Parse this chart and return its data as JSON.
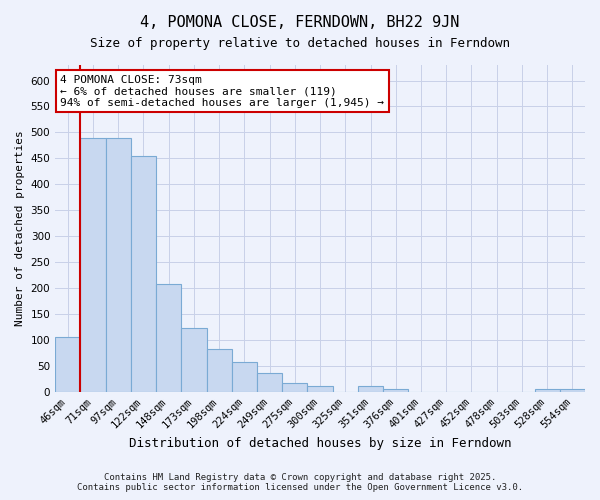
{
  "title": "4, POMONA CLOSE, FERNDOWN, BH22 9JN",
  "subtitle": "Size of property relative to detached houses in Ferndown",
  "xlabel": "Distribution of detached houses by size in Ferndown",
  "ylabel": "Number of detached properties",
  "footer_line1": "Contains HM Land Registry data © Crown copyright and database right 2025.",
  "footer_line2": "Contains public sector information licensed under the Open Government Licence v3.0.",
  "bin_labels": [
    "46sqm",
    "71sqm",
    "97sqm",
    "122sqm",
    "148sqm",
    "173sqm",
    "198sqm",
    "224sqm",
    "249sqm",
    "275sqm",
    "300sqm",
    "325sqm",
    "351sqm",
    "376sqm",
    "401sqm",
    "427sqm",
    "452sqm",
    "478sqm",
    "503sqm",
    "528sqm",
    "554sqm"
  ],
  "bar_heights": [
    105,
    490,
    490,
    455,
    207,
    122,
    82,
    58,
    35,
    17,
    10,
    0,
    10,
    5,
    0,
    0,
    0,
    0,
    0,
    5,
    5
  ],
  "bar_color": "#c8d8f0",
  "bar_edge_color": "#7aaad4",
  "ylim": [
    0,
    630
  ],
  "yticks": [
    0,
    50,
    100,
    150,
    200,
    250,
    300,
    350,
    400,
    450,
    500,
    550,
    600
  ],
  "property_line_color": "#cc0000",
  "annotation_line1": "4 POMONA CLOSE: 73sqm",
  "annotation_line2": "← 6% of detached houses are smaller (119)",
  "annotation_line3": "94% of semi-detached houses are larger (1,945) →",
  "annotation_box_color": "#ffffff",
  "annotation_box_edge": "#cc0000",
  "background_color": "#eef2fc",
  "grid_color": "#c8d0e8",
  "title_fontsize": 11,
  "subtitle_fontsize": 9,
  "xlabel_fontsize": 9,
  "ylabel_fontsize": 8,
  "tick_fontsize": 7.5,
  "footer_fontsize": 6.5,
  "annotation_fontsize": 8
}
